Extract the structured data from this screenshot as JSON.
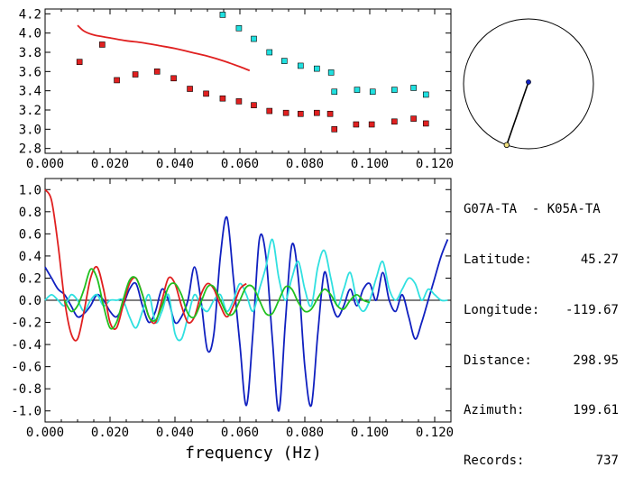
{
  "chart_data": [
    {
      "type": "scatter",
      "xlim": [
        0.0,
        0.125
      ],
      "ylim": [
        2.75,
        4.25
      ],
      "xticks": [
        "0.000",
        "0.020",
        "0.040",
        "0.060",
        "0.080",
        "0.100",
        "0.120"
      ],
      "yticks": [
        "2.8",
        "3.0",
        "3.2",
        "3.4",
        "3.6",
        "3.8",
        "4.0",
        "4.2"
      ],
      "grid": false,
      "series": [
        {
          "color": "#e02020",
          "marker": "square",
          "x": [
            0.0106,
            0.0176,
            0.0221,
            0.0278,
            0.0345,
            0.0396,
            0.0446,
            0.0496,
            0.0547,
            0.0597,
            0.0643,
            0.0691,
            0.0742,
            0.0787,
            0.0837,
            0.0878,
            0.0891,
            0.0958,
            0.1006,
            0.1076,
            0.1135,
            0.1173
          ],
          "y": [
            3.7,
            3.88,
            3.51,
            3.57,
            3.6,
            3.53,
            3.42,
            3.37,
            3.32,
            3.29,
            3.25,
            3.19,
            3.17,
            3.16,
            3.17,
            3.16,
            3.0,
            3.05,
            3.05,
            3.08,
            3.11,
            3.06
          ]
        },
        {
          "color": "#20e0e0",
          "marker": "square",
          "x": [
            0.0547,
            0.0597,
            0.0643,
            0.0691,
            0.0737,
            0.0787,
            0.0837,
            0.0881,
            0.0891,
            0.0961,
            0.1009,
            0.1076,
            0.1135,
            0.1173
          ],
          "y": [
            4.19,
            4.05,
            3.94,
            3.8,
            3.71,
            3.66,
            3.63,
            3.59,
            3.39,
            3.41,
            3.39,
            3.41,
            3.43,
            3.36
          ]
        },
        {
          "color": "#e02020",
          "marker": "line",
          "x": [
            0.01,
            0.012,
            0.015,
            0.02,
            0.025,
            0.03,
            0.035,
            0.04,
            0.045,
            0.05,
            0.055,
            0.06,
            0.063
          ],
          "y": [
            4.08,
            4.02,
            3.98,
            3.95,
            3.92,
            3.9,
            3.87,
            3.84,
            3.8,
            3.76,
            3.71,
            3.65,
            3.61
          ]
        }
      ]
    },
    {
      "type": "line",
      "xlabel": "frequency (Hz)",
      "xlim": [
        0.0,
        0.125
      ],
      "ylim": [
        -1.1,
        1.1
      ],
      "xticks": [
        "0.000",
        "0.020",
        "0.040",
        "0.060",
        "0.080",
        "0.100",
        "0.120"
      ],
      "yticks": [
        "-1.0",
        "-0.8",
        "-0.6",
        "-0.4",
        "-0.2",
        "0.0",
        "0.2",
        "0.4",
        "0.6",
        "0.8",
        "1.0"
      ],
      "grid": false,
      "series": [
        {
          "color": "#1020c0",
          "x": [
            0.0,
            0.002,
            0.004,
            0.006,
            0.008,
            0.01,
            0.012,
            0.014,
            0.016,
            0.018,
            0.02,
            0.022,
            0.024,
            0.026,
            0.028,
            0.03,
            0.032,
            0.034,
            0.036,
            0.038,
            0.04,
            0.042,
            0.044,
            0.046,
            0.048,
            0.05,
            0.052,
            0.054,
            0.056,
            0.058,
            0.06,
            0.062,
            0.064,
            0.066,
            0.068,
            0.07,
            0.072,
            0.074,
            0.076,
            0.078,
            0.08,
            0.082,
            0.084,
            0.086,
            0.088,
            0.09,
            0.092,
            0.094,
            0.096,
            0.098,
            0.1,
            0.102,
            0.104,
            0.106,
            0.108,
            0.11,
            0.112,
            0.114,
            0.116,
            0.118,
            0.12,
            0.122,
            0.124
          ],
          "y": [
            0.3,
            0.2,
            0.1,
            0.05,
            -0.05,
            -0.15,
            -0.12,
            -0.05,
            0.05,
            0.0,
            -0.1,
            -0.15,
            -0.05,
            0.1,
            0.15,
            -0.05,
            -0.2,
            -0.1,
            0.1,
            0.0,
            -0.2,
            -0.15,
            0.0,
            0.3,
            0.0,
            -0.45,
            -0.3,
            0.4,
            0.75,
            0.2,
            -0.4,
            -0.95,
            -0.3,
            0.55,
            0.4,
            -0.35,
            -1.0,
            -0.2,
            0.5,
            0.2,
            -0.6,
            -0.95,
            -0.3,
            0.25,
            0.0,
            -0.15,
            -0.05,
            0.1,
            -0.05,
            0.1,
            0.15,
            0.0,
            0.25,
            0.0,
            -0.1,
            0.05,
            -0.15,
            -0.35,
            -0.2,
            0.0,
            0.2,
            0.4,
            0.55
          ]
        },
        {
          "color": "#30e0e0",
          "x": [
            0.0,
            0.002,
            0.004,
            0.006,
            0.008,
            0.01,
            0.012,
            0.014,
            0.016,
            0.018,
            0.02,
            0.022,
            0.024,
            0.026,
            0.028,
            0.03,
            0.032,
            0.034,
            0.036,
            0.038,
            0.04,
            0.042,
            0.044,
            0.046,
            0.048,
            0.05,
            0.052,
            0.054,
            0.056,
            0.058,
            0.06,
            0.062,
            0.064,
            0.066,
            0.068,
            0.07,
            0.072,
            0.074,
            0.076,
            0.078,
            0.08,
            0.082,
            0.084,
            0.086,
            0.088,
            0.09,
            0.092,
            0.094,
            0.096,
            0.098,
            0.1,
            0.102,
            0.104,
            0.106,
            0.108,
            0.11,
            0.112,
            0.114,
            0.116,
            0.118,
            0.12,
            0.122,
            0.124
          ],
          "y": [
            0.0,
            0.05,
            0.0,
            -0.05,
            0.05,
            0.0,
            -0.1,
            0.0,
            0.05,
            -0.05,
            0.0,
            0.0,
            0.0,
            -0.15,
            -0.25,
            -0.1,
            0.05,
            -0.2,
            -0.1,
            0.05,
            -0.3,
            -0.35,
            -0.15,
            0.05,
            -0.05,
            -0.1,
            0.0,
            0.05,
            -0.1,
            0.0,
            0.15,
            0.05,
            -0.1,
            0.1,
            0.3,
            0.55,
            0.2,
            0.0,
            0.2,
            0.35,
            0.1,
            -0.05,
            0.3,
            0.45,
            0.2,
            -0.05,
            0.1,
            0.25,
            0.0,
            -0.1,
            0.0,
            0.2,
            0.35,
            0.1,
            0.0,
            0.1,
            0.2,
            0.15,
            0.0,
            0.1,
            0.05,
            0.0,
            0.0
          ]
        },
        {
          "color": "#e02020",
          "x": [
            0.0,
            0.002,
            0.004,
            0.006,
            0.008,
            0.01,
            0.012,
            0.014,
            0.016,
            0.018,
            0.02,
            0.022,
            0.024,
            0.026,
            0.028,
            0.03,
            0.032,
            0.034,
            0.036,
            0.038,
            0.04,
            0.042,
            0.044,
            0.046,
            0.048,
            0.05,
            0.052,
            0.054,
            0.056,
            0.058,
            0.06,
            0.062
          ],
          "y": [
            1.0,
            0.9,
            0.5,
            0.0,
            -0.3,
            -0.35,
            -0.1,
            0.2,
            0.3,
            0.1,
            -0.2,
            -0.25,
            -0.05,
            0.15,
            0.2,
            0.05,
            -0.15,
            -0.2,
            0.0,
            0.2,
            0.15,
            -0.05,
            -0.2,
            -0.15,
            0.05,
            0.15,
            0.1,
            -0.05,
            -0.15,
            -0.05,
            0.1,
            0.15
          ]
        },
        {
          "color": "#20c020",
          "x": [
            0.006,
            0.008,
            0.01,
            0.012,
            0.014,
            0.016,
            0.018,
            0.02,
            0.022,
            0.024,
            0.026,
            0.028,
            0.03,
            0.032,
            0.034,
            0.036,
            0.038,
            0.04,
            0.042,
            0.044,
            0.046,
            0.048,
            0.05,
            0.052,
            0.054,
            0.056,
            0.058,
            0.06,
            0.062,
            0.064,
            0.066,
            0.068,
            0.07,
            0.072,
            0.074,
            0.076,
            0.078,
            0.08,
            0.082,
            0.084,
            0.086,
            0.088,
            0.09,
            0.092,
            0.094,
            0.096,
            0.098,
            0.1
          ],
          "y": [
            0.0,
            -0.1,
            -0.05,
            0.1,
            0.28,
            0.2,
            -0.05,
            -0.25,
            -0.2,
            0.0,
            0.18,
            0.2,
            0.05,
            -0.15,
            -0.18,
            -0.05,
            0.12,
            0.15,
            0.05,
            -0.12,
            -0.15,
            -0.02,
            0.12,
            0.12,
            0.0,
            -0.12,
            -0.12,
            0.0,
            0.12,
            0.12,
            0.0,
            -0.12,
            -0.12,
            0.0,
            0.12,
            0.1,
            -0.02,
            -0.1,
            -0.08,
            0.02,
            0.1,
            0.05,
            -0.05,
            -0.08,
            0.0,
            0.05,
            0.0,
            -0.02
          ]
        }
      ]
    },
    {
      "type": "diagram",
      "azimuth_deg": 199.61,
      "marker_radius_fraction": 0.63
    }
  ],
  "info": {
    "title": "G07A-TA  - K05A-TA",
    "rows": [
      {
        "label": "Latitude:",
        "value": "45.27"
      },
      {
        "label": "Longitude:",
        "value": "-119.67"
      },
      {
        "label": "Distance:",
        "value": "298.95"
      },
      {
        "label": "Azimuth:",
        "value": "199.61"
      },
      {
        "label": "Records:",
        "value": "737"
      }
    ]
  }
}
